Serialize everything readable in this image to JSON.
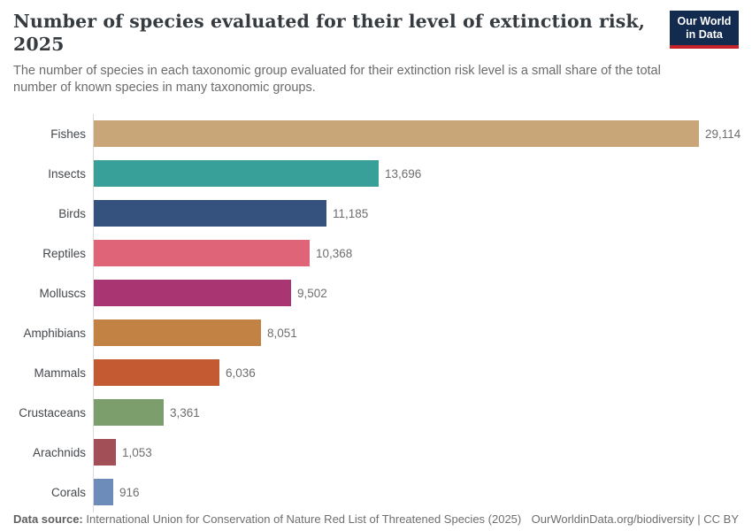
{
  "header": {
    "title": "Number of species evaluated for their level of extinction risk, 2025",
    "subtitle": "The number of species in each taxonomic group evaluated for their extinction risk level is a small share of the total number of known species in many taxonomic groups.",
    "logo": {
      "line1": "Our World",
      "line2": "in Data",
      "bg_color": "#122b4e",
      "accent_color": "#c5232b"
    }
  },
  "chart_data": {
    "type": "bar",
    "orientation": "horizontal",
    "title": "Number of species evaluated for their level of extinction risk, 2025",
    "categories": [
      "Fishes",
      "Insects",
      "Birds",
      "Reptiles",
      "Molluscs",
      "Amphibians",
      "Mammals",
      "Crustaceans",
      "Arachnids",
      "Corals"
    ],
    "values": [
      29114,
      13696,
      11185,
      10368,
      9502,
      8051,
      6036,
      3361,
      1053,
      916
    ],
    "value_labels": [
      "29,114",
      "13,696",
      "11,185",
      "10,368",
      "9,502",
      "8,051",
      "6,036",
      "3,361",
      "1,053",
      "916"
    ],
    "colors": [
      "#C9A678",
      "#38A099",
      "#35517D",
      "#E06477",
      "#A93572",
      "#C18244",
      "#C35A32",
      "#7C9E6D",
      "#A24F58",
      "#6D8CBA"
    ],
    "xlabel": "",
    "ylabel": "",
    "xlim": [
      0,
      29114
    ],
    "grid": false,
    "legend": "none",
    "value_labels_position": "end-of-bar"
  },
  "footer": {
    "source_label": "Data source:",
    "source_text": " International Union for Conservation of Nature Red List of Threatened Species (2025)",
    "credit": "OurWorldinData.org/biodiversity | CC BY"
  }
}
